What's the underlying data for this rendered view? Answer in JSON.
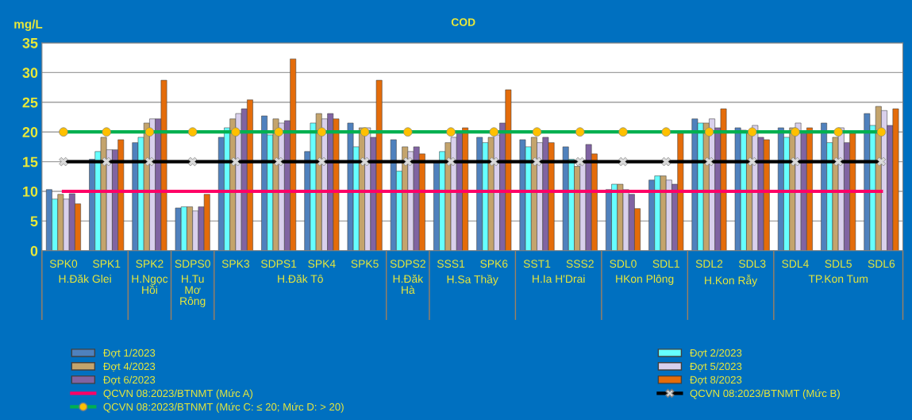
{
  "chart_data": {
    "type": "bar",
    "title": "COD",
    "ylabel": "mg/L",
    "categories": [
      "SPK0",
      "SPK1",
      "SPK2",
      "SDPS0",
      "SPK3",
      "SDPS1",
      "SPK4",
      "SPK5",
      "SDPS2",
      "SSS1",
      "SPK6",
      "SST1",
      "SSS2",
      "SDL0",
      "SDL1",
      "SDL2",
      "SDL3",
      "SDL4",
      "SDL5",
      "SDL6"
    ],
    "series": [
      {
        "name": "Đợt 1/2023",
        "color": "#4f81bd",
        "values": [
          10.3,
          15.4,
          18.2,
          7.2,
          19.1,
          22.7,
          16.7,
          21.5,
          18.7,
          14.9,
          19.1,
          18.7,
          17.5,
          10.3,
          11.9,
          22.2,
          20.7,
          20.7,
          21.5,
          23.1
        ]
      },
      {
        "name": "Đợt 2/2023",
        "color": "#66ffff",
        "values": [
          8.7,
          16.7,
          19.1,
          7.4,
          20.7,
          19.5,
          21.5,
          17.5,
          13.4,
          16.7,
          18.2,
          17.5,
          15.4,
          11.2,
          12.6,
          21.5,
          20.3,
          19.1,
          18.2,
          21.1
        ]
      },
      {
        "name": "Đợt 4/2023",
        "color": "#c4a46c",
        "values": [
          9.5,
          19.1,
          21.5,
          7.4,
          22.2,
          22.2,
          23.1,
          20.7,
          17.5,
          18.2,
          19.1,
          19.1,
          14.2,
          11.2,
          12.6,
          21.5,
          20.0,
          20.7,
          19.1,
          24.3
        ]
      },
      {
        "name": "Đợt 5/2023",
        "color": "#d9d0ec",
        "values": [
          8.7,
          17.0,
          22.2,
          6.7,
          23.1,
          21.5,
          22.2,
          20.7,
          16.7,
          19.1,
          19.5,
          18.2,
          14.9,
          10.3,
          11.9,
          22.2,
          21.1,
          21.5,
          20.7,
          23.6
        ]
      },
      {
        "name": "Đợt 6/2023",
        "color": "#8064a2",
        "values": [
          9.6,
          17.0,
          22.2,
          7.4,
          23.9,
          21.9,
          23.1,
          19.1,
          17.5,
          20.0,
          21.5,
          19.1,
          17.9,
          9.5,
          11.2,
          20.7,
          19.1,
          20.0,
          18.2,
          21.1
        ]
      },
      {
        "name": "Đợt 8/2023",
        "color": "#e46c0a",
        "values": [
          7.9,
          18.7,
          28.7,
          9.5,
          25.4,
          32.3,
          22.2,
          28.7,
          16.3,
          20.7,
          27.1,
          18.2,
          16.3,
          7.1,
          19.8,
          23.9,
          18.7,
          20.7,
          19.8,
          23.9
        ]
      },
      {
        "name": "QCVN 08:2023/BTNMT (Mức A)",
        "type": "line",
        "color": "#ff0066",
        "marker": "none",
        "values": [
          10,
          10,
          10,
          10,
          10,
          10,
          10,
          10,
          10,
          10,
          10,
          10,
          10,
          10,
          10,
          10,
          10,
          10,
          10,
          10
        ]
      },
      {
        "name": "QCVN 08:2023/BTNMT (Mức B)",
        "type": "line",
        "color": "#000000",
        "marker": "cross",
        "colors": [
          "#d9d9d9",
          "#d9d9d9",
          "#d9d9d9",
          "#d9d9d9",
          "#d9d9d9",
          "#d9d9d9",
          "#d9d9d9",
          "#d9d9d9",
          "#d9d9d9",
          "#d9d9d9",
          "#d9d9d9",
          "#d9d9d9",
          "#d9d9d9",
          "#d9d9d9",
          "#d9d9d9",
          "#d9d9d9",
          "#d9d9d9",
          "#d9d9d9",
          "#d9d9d9",
          "#d9d9d9"
        ],
        "values": [
          15,
          15,
          15,
          15,
          15,
          15,
          15,
          15,
          15,
          15,
          15,
          15,
          15,
          15,
          15,
          15,
          15,
          15,
          15,
          15
        ]
      },
      {
        "name": "QCVN 08:2023/BTNMT (Mức C: ≤ 20; Mức D: > 20)",
        "type": "line",
        "color": "#00b050",
        "marker": "circle",
        "colors": [
          "#ffc000",
          "#ffc000",
          "#ffc000",
          "#ffc000",
          "#ffc000",
          "#ffc000",
          "#ffc000",
          "#ffc000",
          "#ffc000",
          "#ffc000",
          "#ffc000",
          "#ffc000",
          "#ffc000",
          "#ffc000",
          "#ffc000",
          "#ffc000",
          "#ffc000",
          "#ffc000",
          "#ffc000",
          "#ffc000"
        ],
        "values": [
          20,
          20,
          20,
          20,
          20,
          20,
          20,
          20,
          20,
          20,
          20,
          20,
          20,
          20,
          20,
          20,
          20,
          20,
          20,
          20
        ]
      }
    ],
    "annotations": [
      "H.Đăk Glei",
      "H.Ngọc Hồi",
      "H.Tu Mơ Rông",
      "H.Đăk Tô",
      "H.Đăk Hà",
      "H.Sa Thầy",
      "H.Ia H'Drai",
      "HKon Plông",
      "H.Kon Rẫy",
      "TP.Kon Tum"
    ],
    "ylim": [
      0,
      35
    ],
    "yticks": [
      0,
      5,
      10,
      15,
      20,
      25,
      30,
      35
    ],
    "grid": "y",
    "legend": "bottom"
  }
}
